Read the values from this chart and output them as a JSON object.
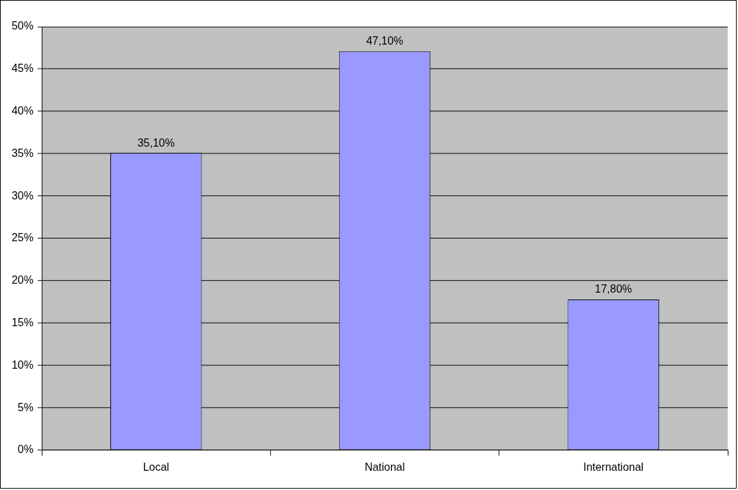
{
  "chart_data": {
    "type": "bar",
    "categories": [
      "Local",
      "National",
      "International"
    ],
    "values": [
      35.1,
      47.1,
      17.8
    ],
    "color": "#9999ff",
    "value_labels": [
      "35,10%",
      "47,10%",
      "17,80%"
    ],
    "ylim": [
      0,
      50
    ],
    "yticks": [
      {
        "value": 0,
        "label": "0%"
      },
      {
        "value": 5,
        "label": "5%"
      },
      {
        "value": 10,
        "label": "10%"
      },
      {
        "value": 15,
        "label": "15%"
      },
      {
        "value": 20,
        "label": "20%"
      },
      {
        "value": 25,
        "label": "25%"
      },
      {
        "value": 30,
        "label": "30%"
      },
      {
        "value": 35,
        "label": "35%"
      },
      {
        "value": 40,
        "label": "40%"
      },
      {
        "value": 45,
        "label": "45%"
      },
      {
        "value": 50,
        "label": "50%"
      }
    ],
    "grid": "y",
    "legend": false
  }
}
